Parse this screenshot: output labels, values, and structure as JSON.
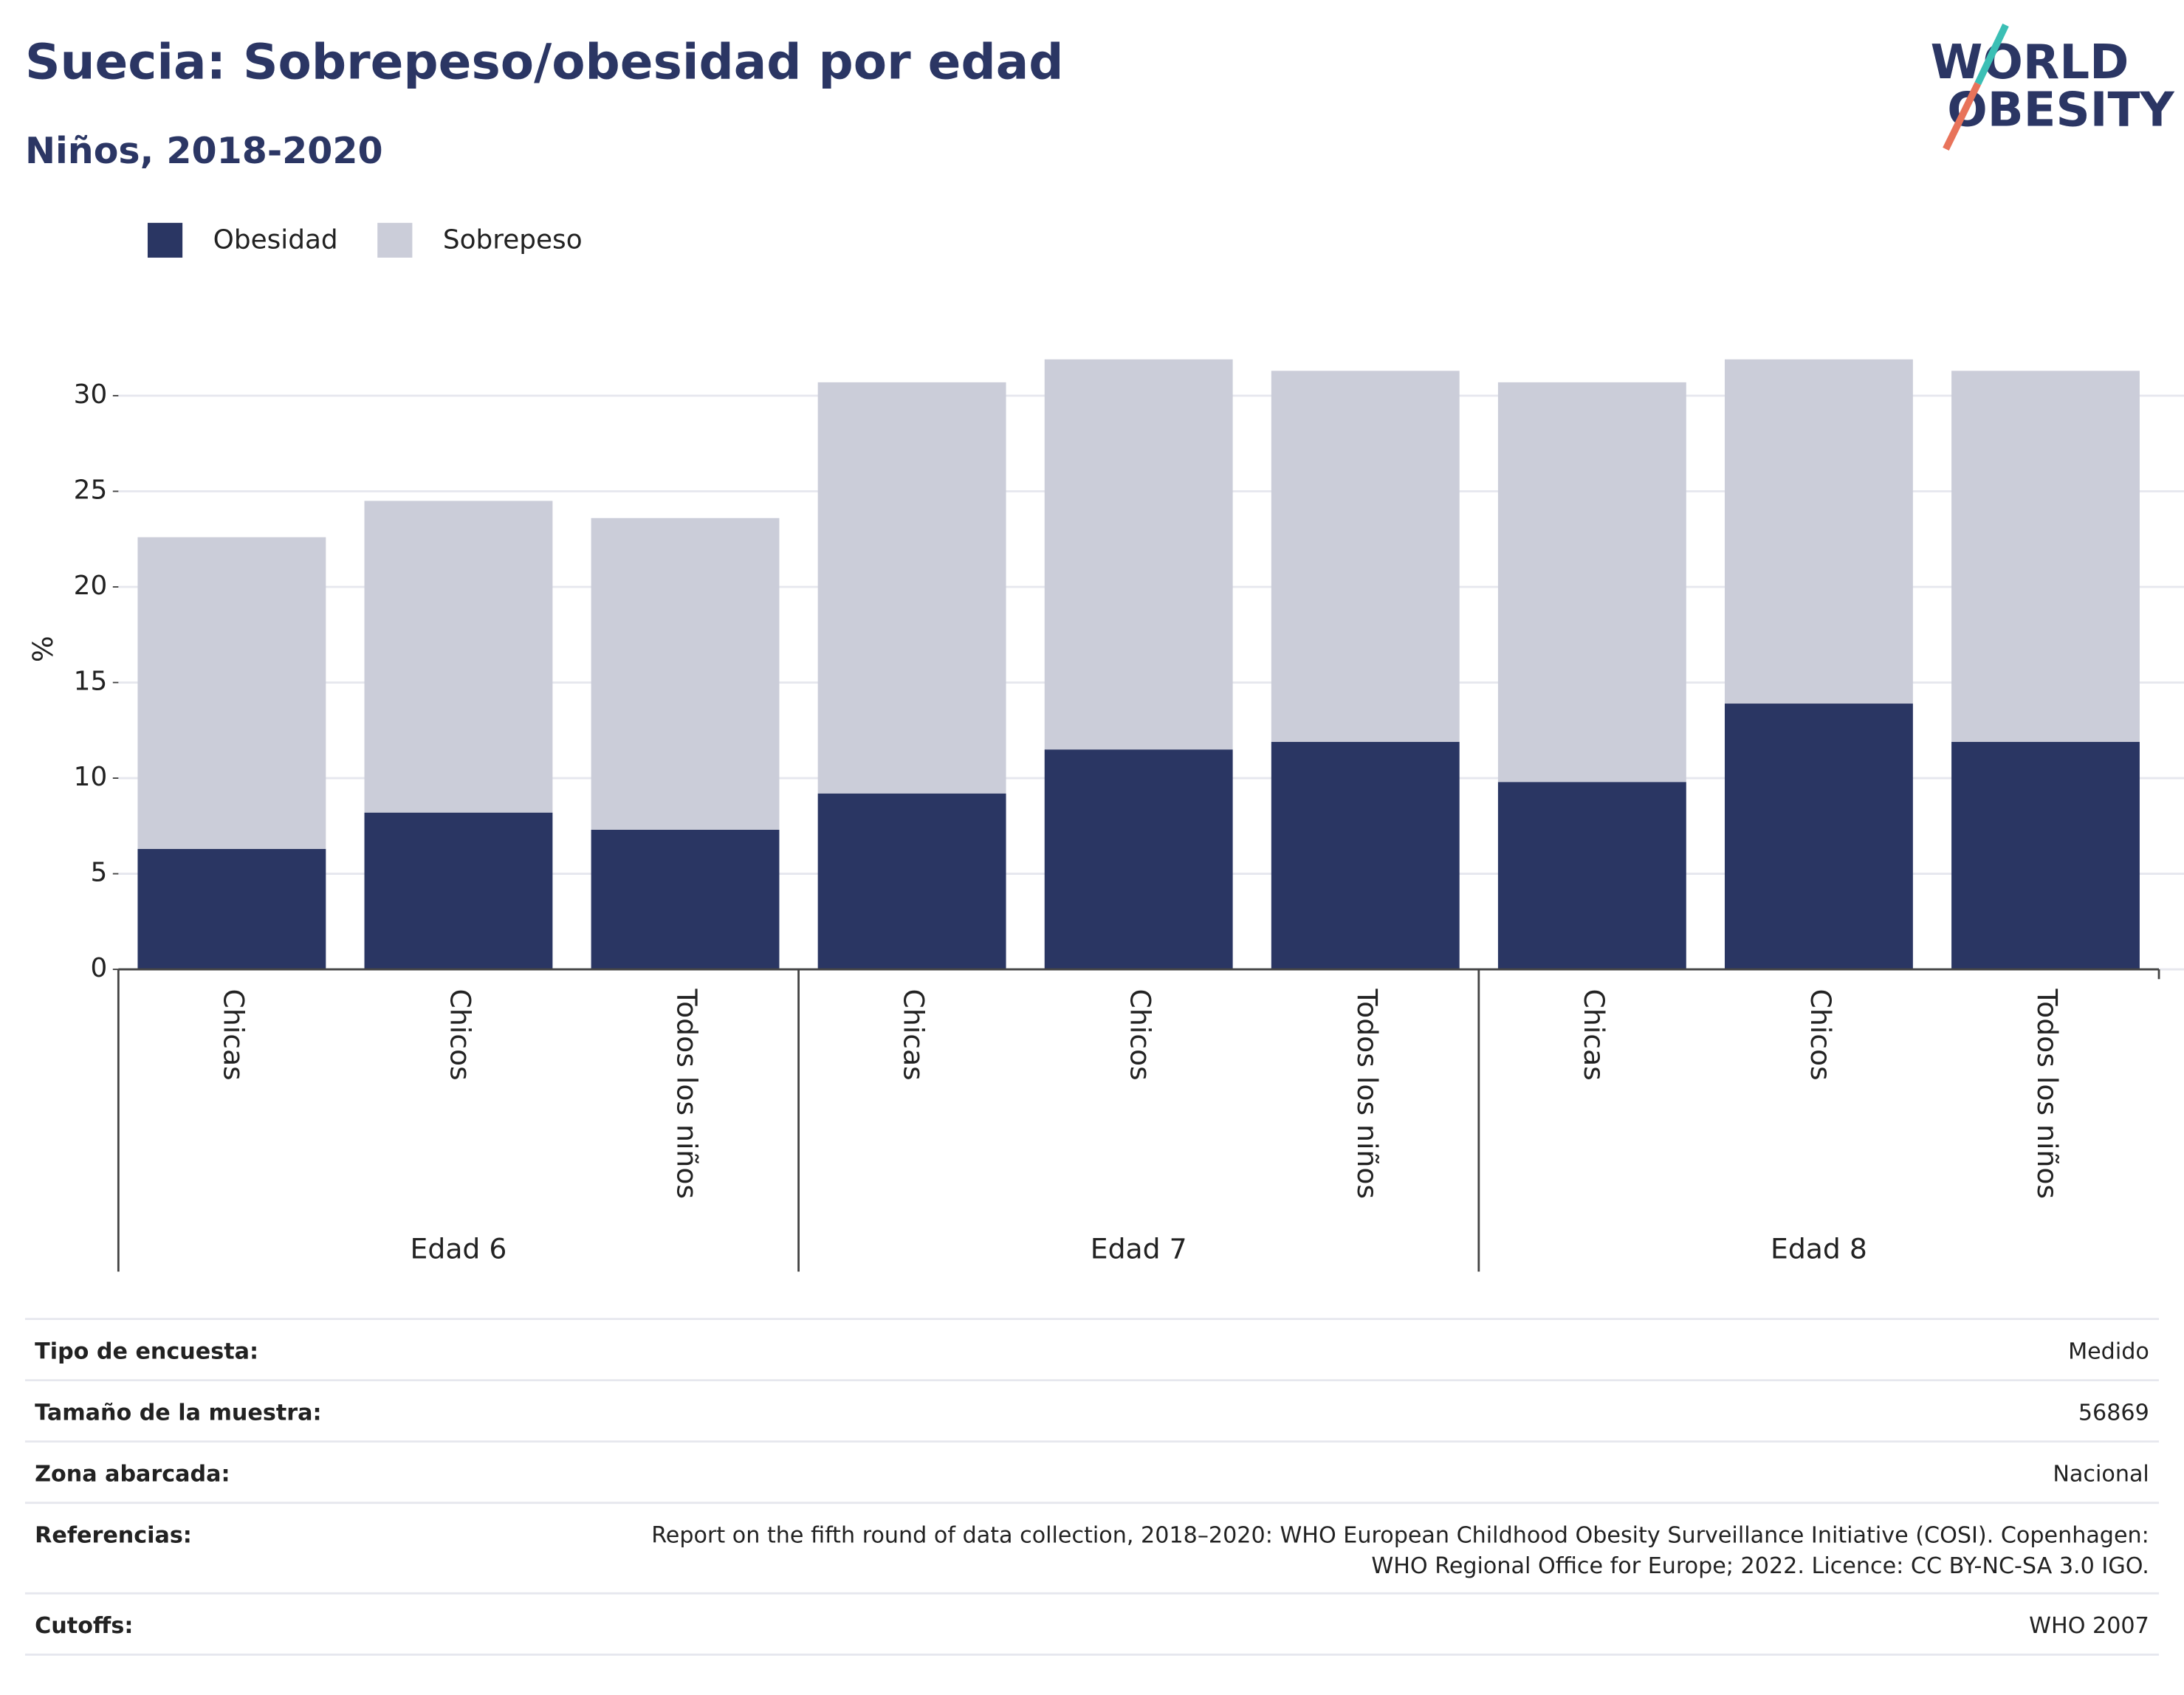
{
  "chart_data": {
    "type": "stacked_bar",
    "title": "Suecia: Sobrepeso/obesidad por edad",
    "subtitle": "Niños, 2018-2020",
    "logo": [
      "WORLD",
      "OBESITY"
    ],
    "y_label": "%",
    "categories": [
      "Chicas",
      "Chicos",
      "Todos los niños",
      "Chicas",
      "Chicos",
      "Todos los niños",
      "Chicas",
      "Chicos",
      "Todos los niños"
    ],
    "groups": [
      "Edad 6",
      "Edad 7",
      "Edad 8"
    ],
    "series": [
      {
        "name": "Obesidad",
        "color": "#2a3663",
        "values": [
          6.3,
          8.2,
          7.3,
          9.2,
          11.5,
          11.9,
          9.8,
          13.9,
          11.9
        ]
      },
      {
        "name": "Sobrepeso",
        "color": "#cbcdd9",
        "values": [
          16.3,
          16.3,
          16.3,
          21.5,
          20.4,
          19.4,
          20.9,
          18.0,
          19.4
        ]
      }
    ],
    "ylim": [
      0,
      33.6
    ],
    "yticks": [
      0,
      5,
      10,
      15,
      20,
      25,
      30
    ],
    "grid": true,
    "info": [
      {
        "label": "Tipo de encuesta:",
        "value": [
          "Medido"
        ]
      },
      {
        "label": "Tamaño de la muestra:",
        "value": [
          "56869"
        ]
      },
      {
        "label": "Zona abarcada:",
        "value": [
          "Nacional"
        ]
      },
      {
        "label": "Referencias:",
        "value": [
          "Report on the fifth round of data collection, 2018–2020: WHO European Childhood Obesity Surveillance Initiative (COSI). Copenhagen:",
          "WHO Regional Office for Europe; 2022. Licence: CC BY-NC-SA 3.0 IGO."
        ]
      },
      {
        "label": "Cutoffs:",
        "value": [
          "WHO 2007"
        ]
      }
    ]
  }
}
